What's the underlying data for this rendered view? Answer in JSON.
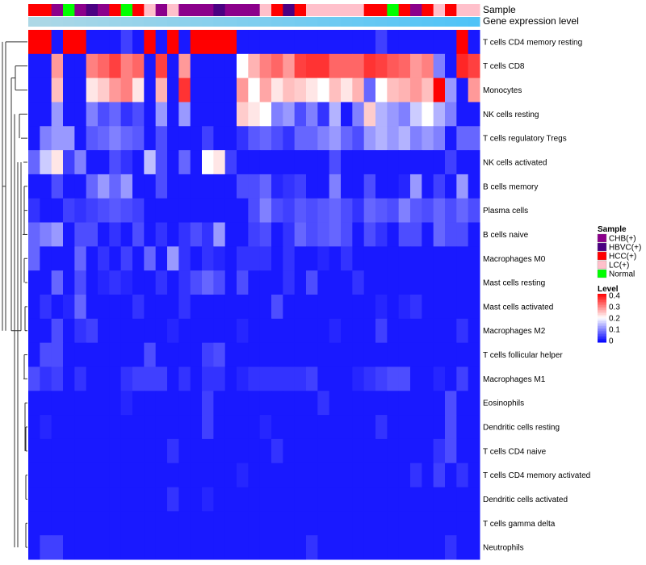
{
  "chart_data": {
    "type": "heatmap",
    "title": "",
    "annotation_labels": {
      "sample": "Sample",
      "expression": "Gene expression level"
    },
    "columns": 39,
    "sample_track": [
      "HCC(+)",
      "HCC(+)",
      "CHB(+)",
      "Normal",
      "CHB(+)",
      "HBVC(+)",
      "CHB(+)",
      "HCC(+)",
      "Normal",
      "HCC(+)",
      "LC(+)",
      "CHB(+)",
      "LC(+)",
      "CHB(+)",
      "CHB(+)",
      "CHB(+)",
      "HBVC(+)",
      "CHB(+)",
      "CHB(+)",
      "CHB(+)",
      "LC(+)",
      "HCC(+)",
      "HBVC(+)",
      "HCC(+)",
      "LC(+)",
      "LC(+)",
      "LC(+)",
      "LC(+)",
      "LC(+)",
      "HCC(+)",
      "HCC(+)",
      "Normal",
      "HCC(+)",
      "CHB(+)",
      "HCC(+)",
      "LC(+)",
      "HCC(+)",
      "LC(+)",
      "LC(+)"
    ],
    "sample_colors": {
      "CHB(+)": "#8B008B",
      "HBVC(+)": "#4B0082",
      "HCC(+)": "#FF0000",
      "LC(+)": "#FFC0CB",
      "Normal": "#00FF00"
    },
    "expression_track": [
      0.0,
      0.0,
      0.0,
      0.0,
      0.0,
      0.0,
      0.0,
      0.0,
      0.0,
      0.0,
      0.0,
      0.0,
      0.0,
      0.0,
      0.0,
      0.0,
      0.0,
      0.0,
      0.0,
      0.0,
      0.0,
      0.0,
      0.0,
      0.0,
      0.0,
      0.0,
      0.0,
      0.0,
      0.0,
      0.0,
      0.0,
      0.0,
      0.0,
      0.0,
      0.0,
      0.0,
      0.0,
      0.0,
      0.0
    ],
    "expression_colors": {
      "low": "#ADD8E6",
      "high": "#4FC3F7"
    },
    "rows": [
      {
        "label": "T cells CD4 memory resting",
        "values": [
          0.4,
          0.4,
          0.02,
          0.4,
          0.4,
          0.02,
          0.02,
          0.02,
          0.05,
          0.02,
          0.4,
          0.02,
          0.4,
          0.02,
          0.4,
          0.4,
          0.4,
          0.4,
          0.02,
          0.02,
          0.02,
          0.02,
          0.02,
          0.02,
          0.02,
          0.02,
          0.02,
          0.02,
          0.02,
          0.02,
          0.05,
          0.02,
          0.02,
          0.02,
          0.02,
          0.02,
          0.02,
          0.4,
          0.02
        ]
      },
      {
        "label": "T cells CD8",
        "values": [
          0.02,
          0.02,
          0.28,
          0.02,
          0.02,
          0.3,
          0.32,
          0.35,
          0.3,
          0.32,
          0.02,
          0.35,
          0.02,
          0.28,
          0.02,
          0.02,
          0.02,
          0.02,
          0.2,
          0.26,
          0.3,
          0.32,
          0.28,
          0.35,
          0.36,
          0.36,
          0.32,
          0.32,
          0.32,
          0.36,
          0.35,
          0.33,
          0.32,
          0.28,
          0.3,
          0.1,
          0.02,
          0.37,
          0.35
        ]
      },
      {
        "label": "Monocytes",
        "values": [
          0.02,
          0.02,
          0.25,
          0.02,
          0.02,
          0.22,
          0.24,
          0.28,
          0.3,
          0.22,
          0.02,
          0.26,
          0.02,
          0.36,
          0.02,
          0.02,
          0.02,
          0.02,
          0.28,
          0.2,
          0.27,
          0.22,
          0.25,
          0.24,
          0.22,
          0.2,
          0.25,
          0.22,
          0.26,
          0.08,
          0.2,
          0.25,
          0.26,
          0.28,
          0.25,
          0.4,
          0.12,
          0.02,
          0.28
        ]
      },
      {
        "label": "NK cells resting",
        "values": [
          0.02,
          0.02,
          0.12,
          0.02,
          0.02,
          0.1,
          0.06,
          0.08,
          0.04,
          0.06,
          0.02,
          0.12,
          0.02,
          0.12,
          0.02,
          0.02,
          0.02,
          0.02,
          0.24,
          0.22,
          0.2,
          0.1,
          0.12,
          0.06,
          0.1,
          0.04,
          0.14,
          0.02,
          0.1,
          0.24,
          0.14,
          0.12,
          0.1,
          0.16,
          0.2,
          0.14,
          0.1,
          0.02,
          0.02
        ]
      },
      {
        "label": "T cells regulatory  Tregs",
        "values": [
          0.02,
          0.1,
          0.12,
          0.12,
          0.02,
          0.07,
          0.08,
          0.1,
          0.08,
          0.07,
          0.02,
          0.06,
          0.02,
          0.02,
          0.02,
          0.05,
          0.02,
          0.02,
          0.04,
          0.07,
          0.08,
          0.06,
          0.04,
          0.08,
          0.08,
          0.1,
          0.12,
          0.08,
          0.06,
          0.12,
          0.14,
          0.12,
          0.14,
          0.1,
          0.12,
          0.1,
          0.02,
          0.08,
          0.08
        ]
      },
      {
        "label": "NK cells activated",
        "values": [
          0.08,
          0.16,
          0.22,
          0.05,
          0.1,
          0.02,
          0.02,
          0.06,
          0.04,
          0.02,
          0.15,
          0.06,
          0.02,
          0.08,
          0.02,
          0.2,
          0.22,
          0.05,
          0.02,
          0.02,
          0.02,
          0.02,
          0.02,
          0.02,
          0.02,
          0.02,
          0.06,
          0.02,
          0.02,
          0.02,
          0.02,
          0.02,
          0.02,
          0.02,
          0.02,
          0.02,
          0.05,
          0.02,
          0.02
        ]
      },
      {
        "label": "B cells memory",
        "values": [
          0.02,
          0.02,
          0.06,
          0.02,
          0.02,
          0.08,
          0.12,
          0.08,
          0.12,
          0.02,
          0.02,
          0.06,
          0.02,
          0.02,
          0.02,
          0.02,
          0.02,
          0.02,
          0.06,
          0.06,
          0.08,
          0.03,
          0.04,
          0.05,
          0.02,
          0.02,
          0.1,
          0.02,
          0.02,
          0.06,
          0.02,
          0.02,
          0.03,
          0.12,
          0.02,
          0.05,
          0.02,
          0.12,
          0.02
        ]
      },
      {
        "label": "Plasma cells",
        "values": [
          0.04,
          0.02,
          0.02,
          0.05,
          0.04,
          0.05,
          0.06,
          0.07,
          0.06,
          0.05,
          0.02,
          0.02,
          0.02,
          0.02,
          0.02,
          0.02,
          0.02,
          0.02,
          0.02,
          0.06,
          0.1,
          0.06,
          0.05,
          0.07,
          0.06,
          0.07,
          0.08,
          0.06,
          0.04,
          0.08,
          0.07,
          0.06,
          0.1,
          0.07,
          0.06,
          0.08,
          0.06,
          0.08,
          0.06
        ]
      },
      {
        "label": "B cells naive",
        "values": [
          0.08,
          0.1,
          0.12,
          0.02,
          0.06,
          0.06,
          0.02,
          0.04,
          0.02,
          0.06,
          0.02,
          0.04,
          0.02,
          0.04,
          0.06,
          0.04,
          0.12,
          0.02,
          0.02,
          0.05,
          0.06,
          0.02,
          0.04,
          0.08,
          0.06,
          0.07,
          0.08,
          0.06,
          0.02,
          0.06,
          0.04,
          0.02,
          0.06,
          0.06,
          0.02,
          0.08,
          0.06,
          0.06,
          0.02
        ]
      },
      {
        "label": "Macrophages M0",
        "values": [
          0.08,
          0.02,
          0.02,
          0.02,
          0.08,
          0.02,
          0.04,
          0.02,
          0.05,
          0.02,
          0.08,
          0.02,
          0.12,
          0.04,
          0.02,
          0.04,
          0.03,
          0.02,
          0.04,
          0.04,
          0.04,
          0.02,
          0.04,
          0.02,
          0.02,
          0.03,
          0.02,
          0.04,
          0.02,
          0.02,
          0.02,
          0.02,
          0.02,
          0.02,
          0.02,
          0.02,
          0.02,
          0.02,
          0.02
        ]
      },
      {
        "label": "Mast cells resting",
        "values": [
          0.02,
          0.02,
          0.08,
          0.02,
          0.06,
          0.02,
          0.03,
          0.04,
          0.03,
          0.02,
          0.02,
          0.04,
          0.02,
          0.04,
          0.06,
          0.08,
          0.06,
          0.02,
          0.06,
          0.02,
          0.02,
          0.02,
          0.04,
          0.02,
          0.06,
          0.02,
          0.02,
          0.02,
          0.04,
          0.02,
          0.02,
          0.02,
          0.02,
          0.02,
          0.02,
          0.02,
          0.02,
          0.02,
          0.02
        ]
      },
      {
        "label": "Mast cells activated",
        "values": [
          0.02,
          0.04,
          0.02,
          0.03,
          0.08,
          0.02,
          0.02,
          0.02,
          0.02,
          0.04,
          0.02,
          0.02,
          0.02,
          0.04,
          0.02,
          0.02,
          0.02,
          0.02,
          0.02,
          0.02,
          0.02,
          0.06,
          0.02,
          0.02,
          0.02,
          0.02,
          0.02,
          0.02,
          0.02,
          0.02,
          0.03,
          0.02,
          0.03,
          0.04,
          0.02,
          0.02,
          0.02,
          0.02,
          0.02
        ]
      },
      {
        "label": "Macrophages M2",
        "values": [
          0.02,
          0.02,
          0.06,
          0.02,
          0.04,
          0.05,
          0.02,
          0.02,
          0.02,
          0.02,
          0.02,
          0.02,
          0.03,
          0.02,
          0.02,
          0.02,
          0.02,
          0.02,
          0.03,
          0.02,
          0.02,
          0.02,
          0.02,
          0.02,
          0.02,
          0.02,
          0.03,
          0.02,
          0.02,
          0.02,
          0.05,
          0.02,
          0.02,
          0.02,
          0.02,
          0.02,
          0.02,
          0.04,
          0.02
        ]
      },
      {
        "label": "T cells follicular helper",
        "values": [
          0.02,
          0.06,
          0.06,
          0.02,
          0.02,
          0.02,
          0.02,
          0.02,
          0.02,
          0.02,
          0.06,
          0.02,
          0.02,
          0.02,
          0.02,
          0.05,
          0.06,
          0.02,
          0.02,
          0.02,
          0.02,
          0.02,
          0.02,
          0.02,
          0.02,
          0.02,
          0.02,
          0.02,
          0.02,
          0.02,
          0.02,
          0.02,
          0.02,
          0.02,
          0.02,
          0.02,
          0.02,
          0.02,
          0.02
        ]
      },
      {
        "label": "Macrophages M1",
        "values": [
          0.06,
          0.04,
          0.05,
          0.02,
          0.04,
          0.02,
          0.02,
          0.02,
          0.04,
          0.05,
          0.05,
          0.05,
          0.02,
          0.04,
          0.02,
          0.04,
          0.04,
          0.02,
          0.03,
          0.04,
          0.04,
          0.04,
          0.04,
          0.04,
          0.05,
          0.02,
          0.02,
          0.02,
          0.03,
          0.04,
          0.05,
          0.06,
          0.06,
          0.02,
          0.02,
          0.03,
          0.02,
          0.05,
          0.02
        ]
      },
      {
        "label": "Eosinophils",
        "values": [
          0.02,
          0.02,
          0.02,
          0.02,
          0.02,
          0.02,
          0.02,
          0.02,
          0.03,
          0.02,
          0.02,
          0.02,
          0.02,
          0.02,
          0.02,
          0.05,
          0.02,
          0.02,
          0.02,
          0.02,
          0.02,
          0.02,
          0.02,
          0.02,
          0.02,
          0.04,
          0.02,
          0.02,
          0.02,
          0.02,
          0.02,
          0.02,
          0.02,
          0.02,
          0.02,
          0.02,
          0.06,
          0.02,
          0.02
        ]
      },
      {
        "label": "Dendritic cells resting",
        "values": [
          0.02,
          0.03,
          0.02,
          0.02,
          0.02,
          0.02,
          0.02,
          0.02,
          0.02,
          0.02,
          0.02,
          0.02,
          0.02,
          0.02,
          0.02,
          0.05,
          0.02,
          0.02,
          0.02,
          0.02,
          0.03,
          0.02,
          0.02,
          0.02,
          0.02,
          0.02,
          0.02,
          0.02,
          0.02,
          0.02,
          0.04,
          0.02,
          0.02,
          0.02,
          0.02,
          0.02,
          0.06,
          0.02,
          0.02
        ]
      },
      {
        "label": "T cells CD4 naive",
        "values": [
          0.02,
          0.02,
          0.02,
          0.02,
          0.02,
          0.02,
          0.02,
          0.02,
          0.02,
          0.02,
          0.02,
          0.02,
          0.04,
          0.02,
          0.02,
          0.02,
          0.02,
          0.02,
          0.02,
          0.02,
          0.02,
          0.04,
          0.02,
          0.02,
          0.02,
          0.02,
          0.02,
          0.02,
          0.02,
          0.02,
          0.02,
          0.02,
          0.02,
          0.02,
          0.02,
          0.04,
          0.06,
          0.02,
          0.02
        ]
      },
      {
        "label": "T cells CD4 memory activated",
        "values": [
          0.02,
          0.02,
          0.02,
          0.02,
          0.02,
          0.02,
          0.02,
          0.02,
          0.02,
          0.02,
          0.02,
          0.02,
          0.02,
          0.02,
          0.02,
          0.02,
          0.02,
          0.02,
          0.03,
          0.02,
          0.02,
          0.02,
          0.02,
          0.02,
          0.02,
          0.02,
          0.02,
          0.02,
          0.02,
          0.02,
          0.02,
          0.02,
          0.02,
          0.04,
          0.02,
          0.05,
          0.02,
          0.04,
          0.02
        ]
      },
      {
        "label": "Dendritic cells activated",
        "values": [
          0.02,
          0.02,
          0.02,
          0.02,
          0.02,
          0.02,
          0.02,
          0.02,
          0.02,
          0.02,
          0.02,
          0.02,
          0.04,
          0.02,
          0.02,
          0.03,
          0.02,
          0.02,
          0.02,
          0.02,
          0.02,
          0.02,
          0.02,
          0.02,
          0.02,
          0.02,
          0.02,
          0.02,
          0.02,
          0.02,
          0.02,
          0.02,
          0.02,
          0.02,
          0.02,
          0.02,
          0.02,
          0.02,
          0.02
        ]
      },
      {
        "label": "T cells gamma delta",
        "values": [
          0.02,
          0.02,
          0.02,
          0.02,
          0.02,
          0.02,
          0.02,
          0.02,
          0.02,
          0.02,
          0.02,
          0.02,
          0.02,
          0.02,
          0.02,
          0.02,
          0.02,
          0.02,
          0.02,
          0.02,
          0.02,
          0.02,
          0.02,
          0.02,
          0.02,
          0.02,
          0.02,
          0.02,
          0.02,
          0.02,
          0.02,
          0.02,
          0.02,
          0.02,
          0.02,
          0.02,
          0.02,
          0.02,
          0.02
        ]
      },
      {
        "label": "Neutrophils",
        "values": [
          0.02,
          0.05,
          0.05,
          0.02,
          0.02,
          0.02,
          0.02,
          0.02,
          0.02,
          0.02,
          0.02,
          0.02,
          0.02,
          0.02,
          0.02,
          0.02,
          0.02,
          0.02,
          0.02,
          0.02,
          0.02,
          0.02,
          0.02,
          0.02,
          0.04,
          0.02,
          0.02,
          0.02,
          0.02,
          0.02,
          0.02,
          0.02,
          0.02,
          0.02,
          0.02,
          0.02,
          0.04,
          0.02,
          0.02
        ]
      }
    ],
    "color_scale": {
      "min": 0,
      "max": 0.4,
      "colors": [
        "#0000FF",
        "#FFFFFF",
        "#FF0000"
      ]
    },
    "legends": {
      "sample": {
        "title": "Sample",
        "entries": [
          {
            "label": "CHB(+)",
            "color": "#8B008B"
          },
          {
            "label": "HBVC(+)",
            "color": "#4B0082"
          },
          {
            "label": "HCC(+)",
            "color": "#FF0000"
          },
          {
            "label": "LC(+)",
            "color": "#FFC0CB"
          },
          {
            "label": "Normal",
            "color": "#00FF00"
          }
        ]
      },
      "level": {
        "title": "Level",
        "ticks": [
          "0.4",
          "0.3",
          "0.2",
          "0.1",
          "0"
        ]
      }
    }
  }
}
